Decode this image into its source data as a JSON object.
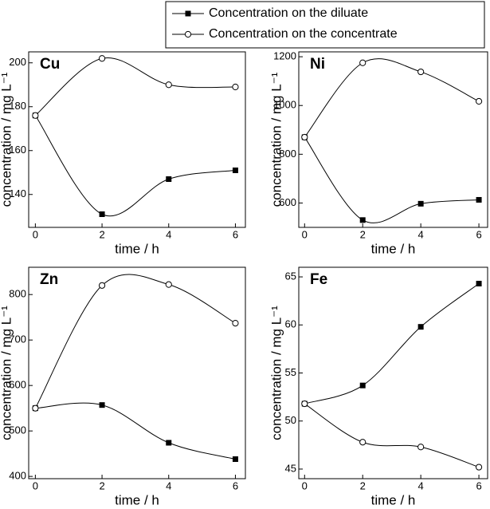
{
  "chart_data": [
    {
      "type": "line",
      "title": "Cu",
      "xlabel": "time / h",
      "ylabel": "concentration / mg L⁻¹",
      "legend": "above",
      "x": [
        0,
        2,
        4,
        6
      ],
      "xlim": [
        -0.2,
        6.3
      ],
      "xticks": [
        0,
        2,
        4,
        6
      ],
      "ylim": [
        125,
        205
      ],
      "yticks": [
        140,
        160,
        180,
        200
      ],
      "series": [
        {
          "name": "Concentration on the diluate",
          "color": "#000000",
          "marker": "square",
          "values": [
            176,
            131,
            147,
            151
          ]
        },
        {
          "name": "Concentration on the concentrate",
          "color": "#000000",
          "marker": "circle",
          "values": [
            176,
            202,
            190,
            189
          ]
        }
      ]
    },
    {
      "type": "line",
      "title": "Ni",
      "xlabel": "time / h",
      "ylabel": "concentration / mg L⁻¹",
      "x": [
        0,
        2,
        4,
        6
      ],
      "xlim": [
        -0.2,
        6.3
      ],
      "xticks": [
        0,
        2,
        4,
        6
      ],
      "ylim": [
        500,
        1220
      ],
      "yticks": [
        600,
        800,
        1000,
        1200
      ],
      "series": [
        {
          "color": "#000000",
          "marker": "square",
          "values": [
            870,
            530,
            597,
            613
          ]
        },
        {
          "color": "#000000",
          "marker": "circle",
          "values": [
            870,
            1175,
            1138,
            1017
          ]
        }
      ]
    },
    {
      "type": "line",
      "title": "Zn",
      "xlabel": "time / h",
      "ylabel": "concentration / mg L⁻¹",
      "x": [
        0,
        2,
        4,
        6
      ],
      "xlim": [
        -0.2,
        6.3
      ],
      "xticks": [
        0,
        2,
        4,
        6
      ],
      "ylim": [
        395,
        860
      ],
      "yticks": [
        400,
        500,
        600,
        700,
        800
      ],
      "series": [
        {
          "color": "#000000",
          "marker": "square",
          "values": [
            550,
            557,
            474,
            438
          ]
        },
        {
          "color": "#000000",
          "marker": "circle",
          "values": [
            550,
            820,
            822,
            737
          ]
        }
      ]
    },
    {
      "type": "line",
      "title": "Fe",
      "xlabel": "time / h",
      "ylabel": "concentration / mg L⁻¹",
      "x": [
        0,
        2,
        4,
        6
      ],
      "xlim": [
        -0.2,
        6.3
      ],
      "xticks": [
        0,
        2,
        4,
        6
      ],
      "ylim": [
        44,
        66
      ],
      "yticks": [
        45,
        50,
        55,
        60,
        65
      ],
      "series": [
        {
          "color": "#000000",
          "marker": "square",
          "values": [
            51.8,
            53.7,
            59.8,
            64.3
          ]
        },
        {
          "color": "#000000",
          "marker": "circle",
          "values": [
            51.8,
            47.8,
            47.3,
            45.2
          ]
        }
      ]
    }
  ]
}
